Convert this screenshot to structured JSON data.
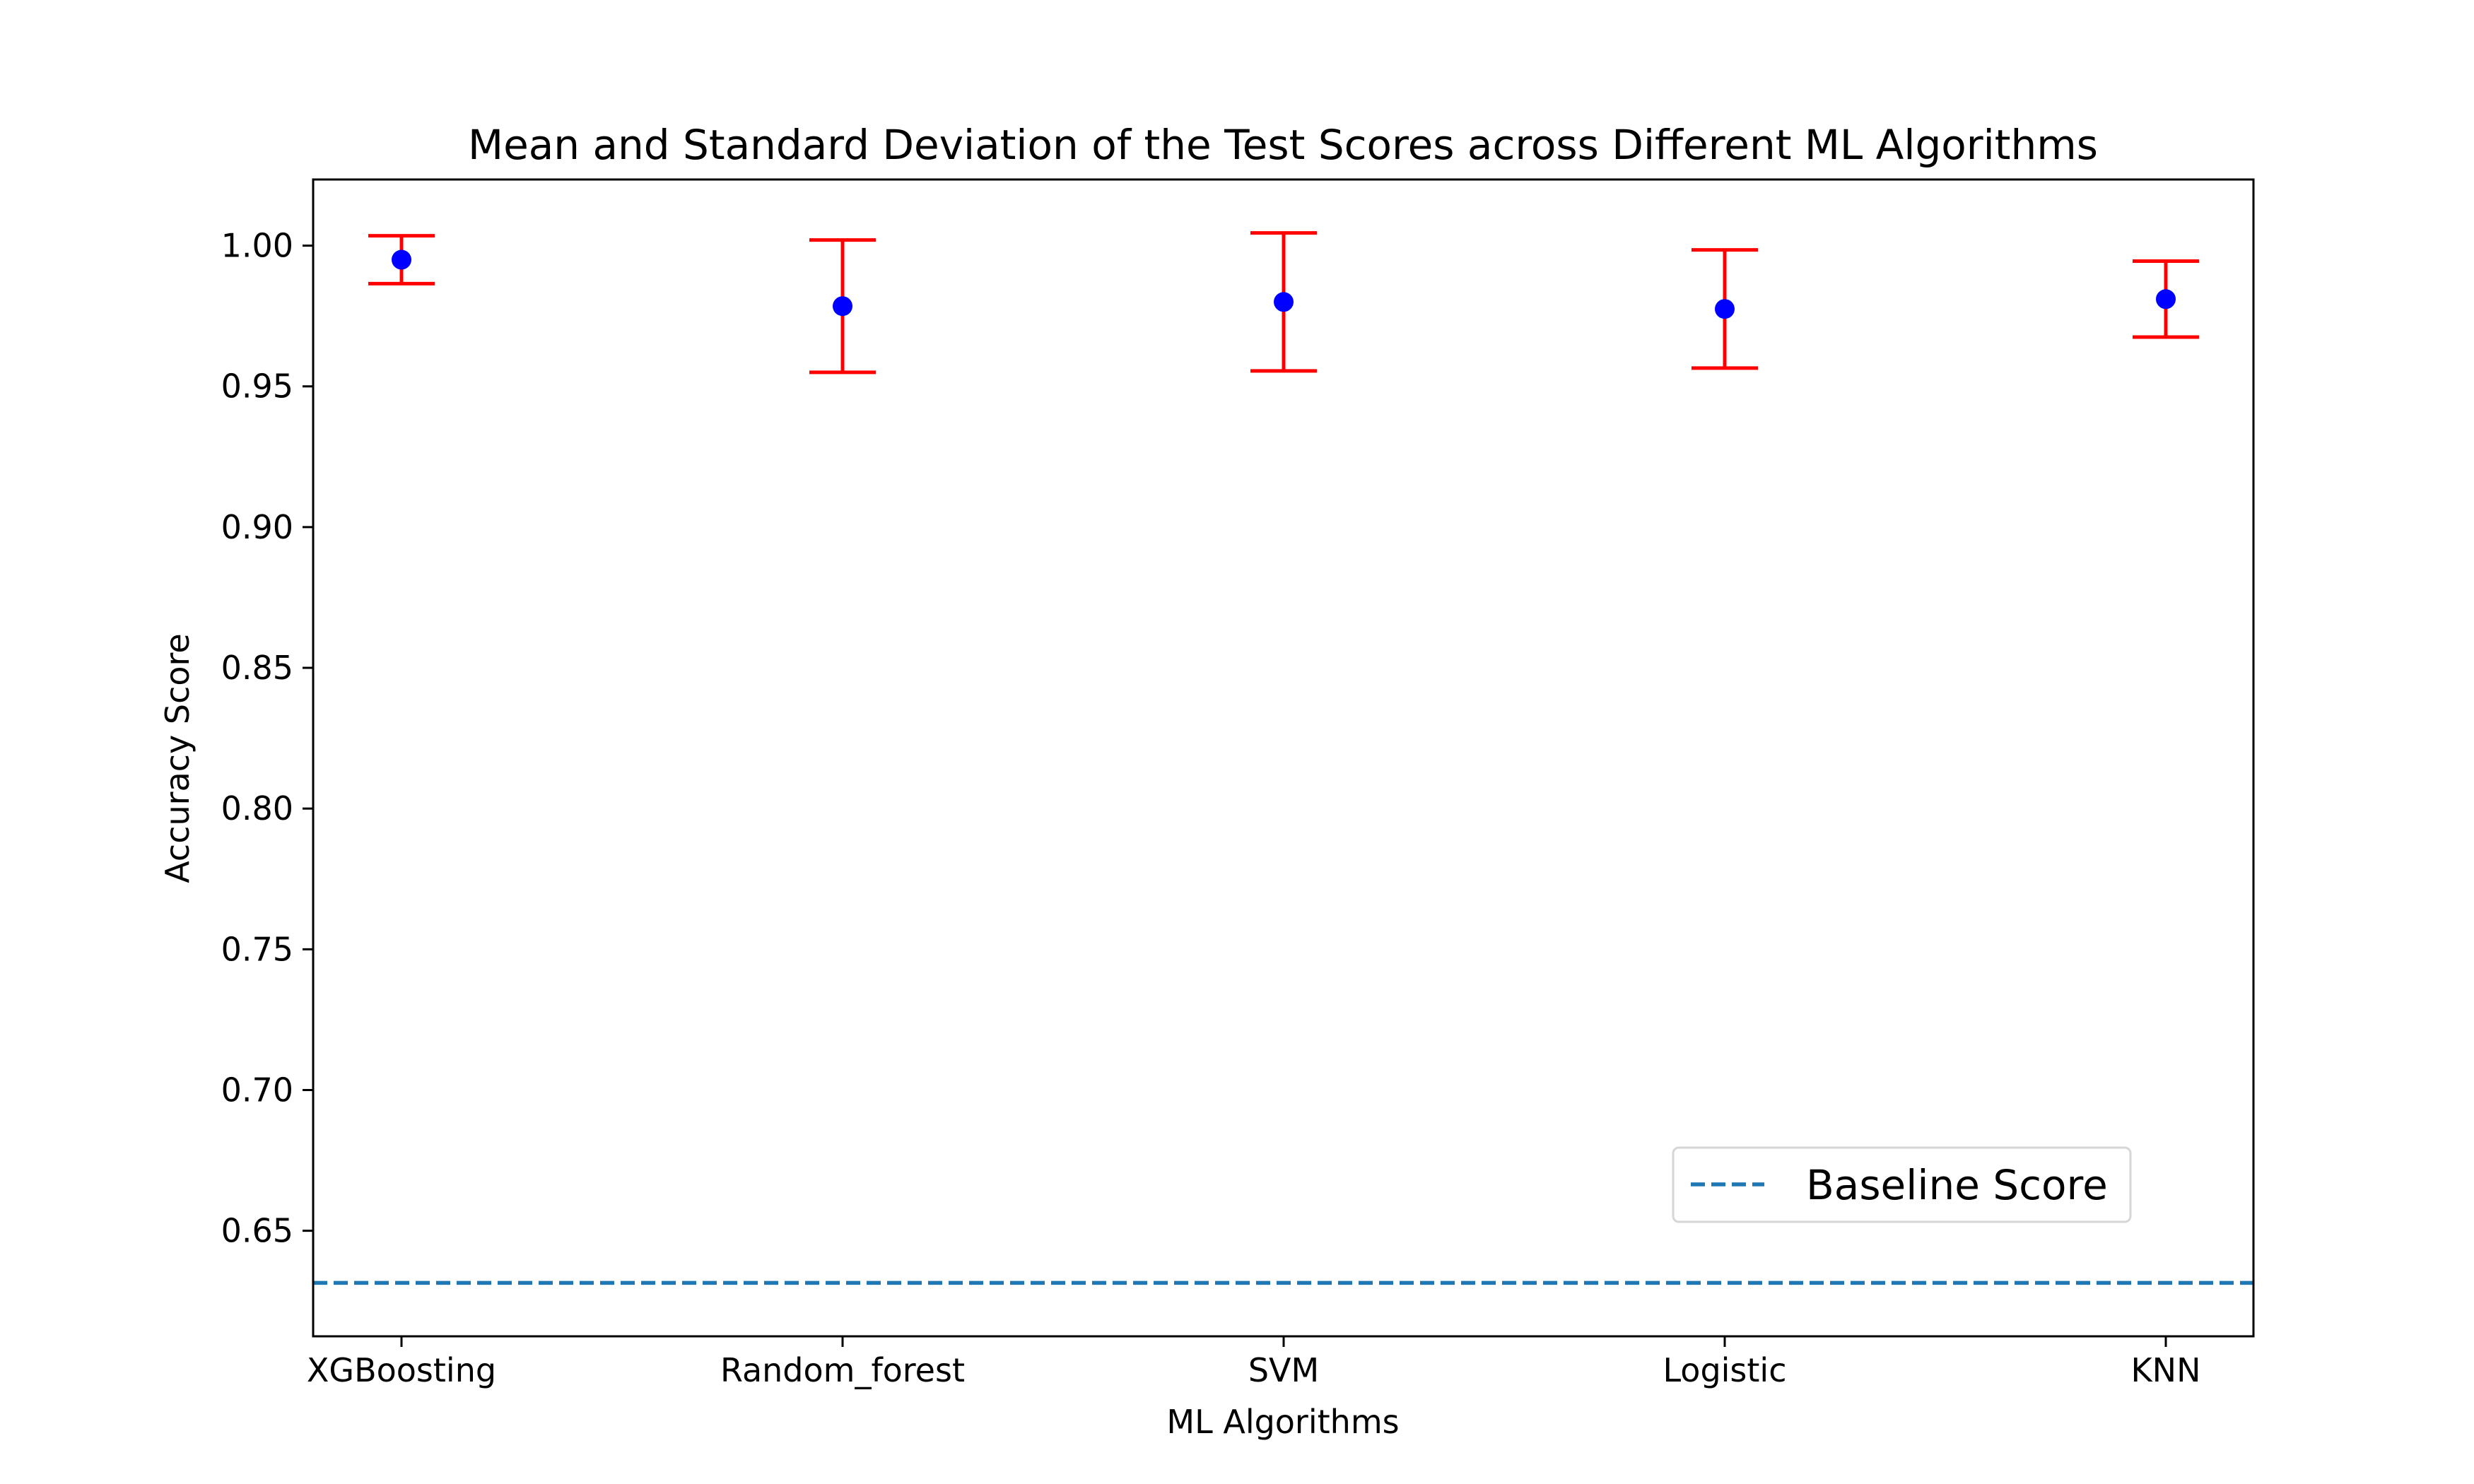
{
  "chart_data": {
    "type": "scatter",
    "title": "Mean and Standard Deviation of the Test Scores across Different ML Algorithms",
    "xlabel": "ML Algorithms",
    "ylabel": "Accuracy Score",
    "categories": [
      "XGBoosting",
      "Random_forest",
      "SVM",
      "Logistic",
      "KNN"
    ],
    "series": [
      {
        "name": "",
        "mean": [
          0.995,
          0.9785,
          0.98,
          0.9775,
          0.981
        ],
        "std": [
          0.0085,
          0.0235,
          0.0245,
          0.021,
          0.0135
        ],
        "marker_color": "#0000ff",
        "errorbar_color": "#ff0000"
      }
    ],
    "baseline": {
      "name": "Baseline Score",
      "value": 0.6315,
      "color": "#1f77b4",
      "style": "dashed"
    },
    "ylim": [
      0.6125,
      1.0235
    ],
    "yticks": [
      "0.65",
      "0.70",
      "0.75",
      "0.80",
      "0.85",
      "0.90",
      "0.95",
      "1.00"
    ],
    "grid": false,
    "legend_position": "lower-right"
  }
}
